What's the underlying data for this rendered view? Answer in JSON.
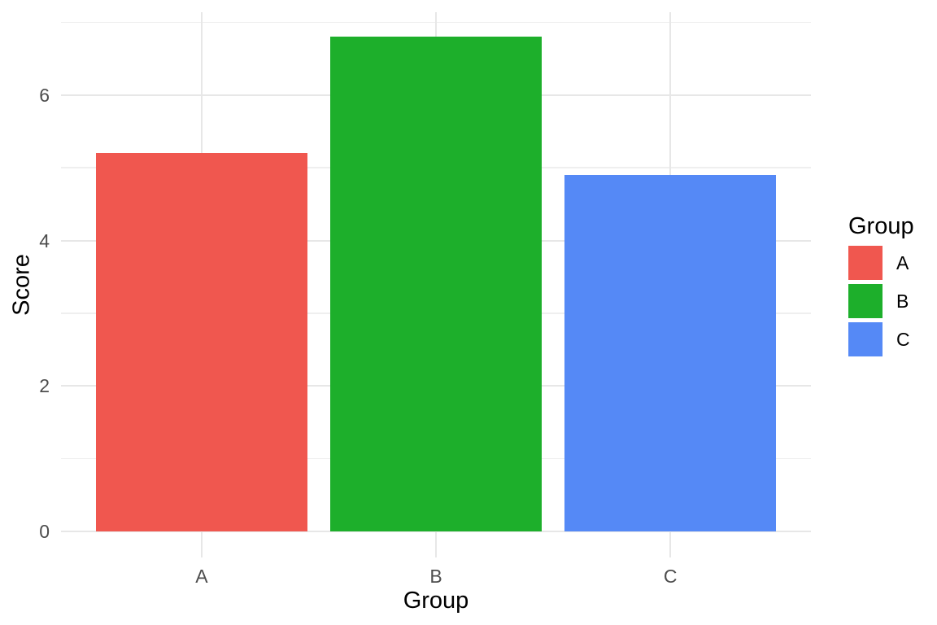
{
  "figure": {
    "background_color": "#FFFFFF",
    "x_axis_title": "Group",
    "y_axis_title": "Score",
    "x_tick_labels": [
      "A",
      "B",
      "C"
    ],
    "y_tick_labels": [
      "0",
      "2",
      "4",
      "6"
    ]
  },
  "legend": {
    "title": "Group",
    "entries": [
      {
        "label": "A",
        "color": "#F0574F"
      },
      {
        "label": "B",
        "color": "#1DAF2B"
      },
      {
        "label": "C",
        "color": "#5589F6"
      }
    ],
    "position": "right"
  },
  "chart_data": {
    "type": "bar",
    "title": "",
    "categories": [
      "A",
      "B",
      "C"
    ],
    "values": [
      5.2,
      6.8,
      4.9
    ],
    "colors": [
      "#F0574F",
      "#1DAF2B",
      "#5589F6"
    ],
    "xlabel": "Group",
    "ylabel": "Score",
    "ylim": [
      -0.36,
      7.14
    ],
    "yticks_major": [
      0,
      2,
      4,
      6
    ],
    "yticks_minor": [
      1,
      3,
      5,
      7
    ],
    "bar_width_fraction": 0.9,
    "grid": "horizontal major+minor, vertical major at each category",
    "legend_position": "right",
    "style_colors": {
      "grid_major": "#E7E7E7",
      "grid_minor": "#EFEFEF",
      "tick_label_color": "#4D4D4D",
      "axis_title_color": "#000000",
      "panel_background": "#FFFFFF"
    }
  }
}
